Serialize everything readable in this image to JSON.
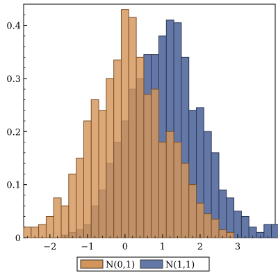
{
  "chart_data": {
    "type": "bar",
    "title": "",
    "xlabel": "",
    "ylabel": "",
    "xlim": [
      -2.7,
      4.0
    ],
    "ylim": [
      0,
      0.44
    ],
    "bin_width": 0.2,
    "grid": false,
    "legend_placement": "bottom",
    "x_ticks": [
      -2,
      -1,
      0,
      1,
      2,
      3
    ],
    "y_ticks": [
      0,
      0.1,
      0.2,
      0.3,
      0.4
    ],
    "x_tick_labels": [
      "−2",
      "−1",
      "0",
      "1",
      "2",
      "3"
    ],
    "y_tick_labels": [
      "0",
      "0.1",
      "0.2",
      "0.3",
      "0.4"
    ],
    "series": [
      {
        "name": "N(1,1)",
        "color": "#6478a8",
        "stroke": "#2c3550",
        "bins": [
          [
            -1.7,
            0.005
          ],
          [
            -1.5,
            0.01
          ],
          [
            -1.3,
            0.015
          ],
          [
            -1.1,
            0.025
          ],
          [
            -0.9,
            0.06
          ],
          [
            -0.7,
            0.09
          ],
          [
            -0.5,
            0.14
          ],
          [
            -0.3,
            0.18
          ],
          [
            -0.1,
            0.22
          ],
          [
            0.1,
            0.28
          ],
          [
            0.3,
            0.3
          ],
          [
            0.5,
            0.345
          ],
          [
            0.7,
            0.345
          ],
          [
            0.9,
            0.38
          ],
          [
            1.1,
            0.41
          ],
          [
            1.3,
            0.405
          ],
          [
            1.5,
            0.34
          ],
          [
            1.7,
            0.24
          ],
          [
            1.9,
            0.245
          ],
          [
            2.1,
            0.2
          ],
          [
            2.3,
            0.16
          ],
          [
            2.5,
            0.09
          ],
          [
            2.7,
            0.075
          ],
          [
            2.9,
            0.05
          ],
          [
            3.1,
            0.04
          ],
          [
            3.3,
            0.02
          ],
          [
            3.5,
            0.01
          ],
          [
            3.7,
            0.025
          ],
          [
            3.9,
            0.025
          ]
        ]
      },
      {
        "name": "N(0,1)",
        "color": "#d4955a",
        "stroke": "#7a5028",
        "alpha": 0.82,
        "bins": [
          [
            -2.7,
            0.02
          ],
          [
            -2.5,
            0.02
          ],
          [
            -2.3,
            0.025
          ],
          [
            -2.1,
            0.04
          ],
          [
            -1.9,
            0.075
          ],
          [
            -1.7,
            0.06
          ],
          [
            -1.5,
            0.12
          ],
          [
            -1.3,
            0.15
          ],
          [
            -1.1,
            0.22
          ],
          [
            -0.9,
            0.26
          ],
          [
            -0.7,
            0.24
          ],
          [
            -0.5,
            0.3
          ],
          [
            -0.3,
            0.335
          ],
          [
            -0.1,
            0.43
          ],
          [
            0.1,
            0.415
          ],
          [
            0.3,
            0.34
          ],
          [
            0.5,
            0.27
          ],
          [
            0.7,
            0.28
          ],
          [
            0.9,
            0.18
          ],
          [
            1.1,
            0.2
          ],
          [
            1.3,
            0.18
          ],
          [
            1.5,
            0.14
          ],
          [
            1.7,
            0.1
          ],
          [
            1.9,
            0.065
          ],
          [
            2.1,
            0.045
          ],
          [
            2.3,
            0.035
          ],
          [
            2.5,
            0.015
          ],
          [
            2.7,
            0.01
          ]
        ]
      }
    ],
    "legend": [
      {
        "name": "N(0,1)",
        "color": "#d4955a"
      },
      {
        "name": "N(1,1)",
        "color": "#6478a8"
      }
    ]
  }
}
